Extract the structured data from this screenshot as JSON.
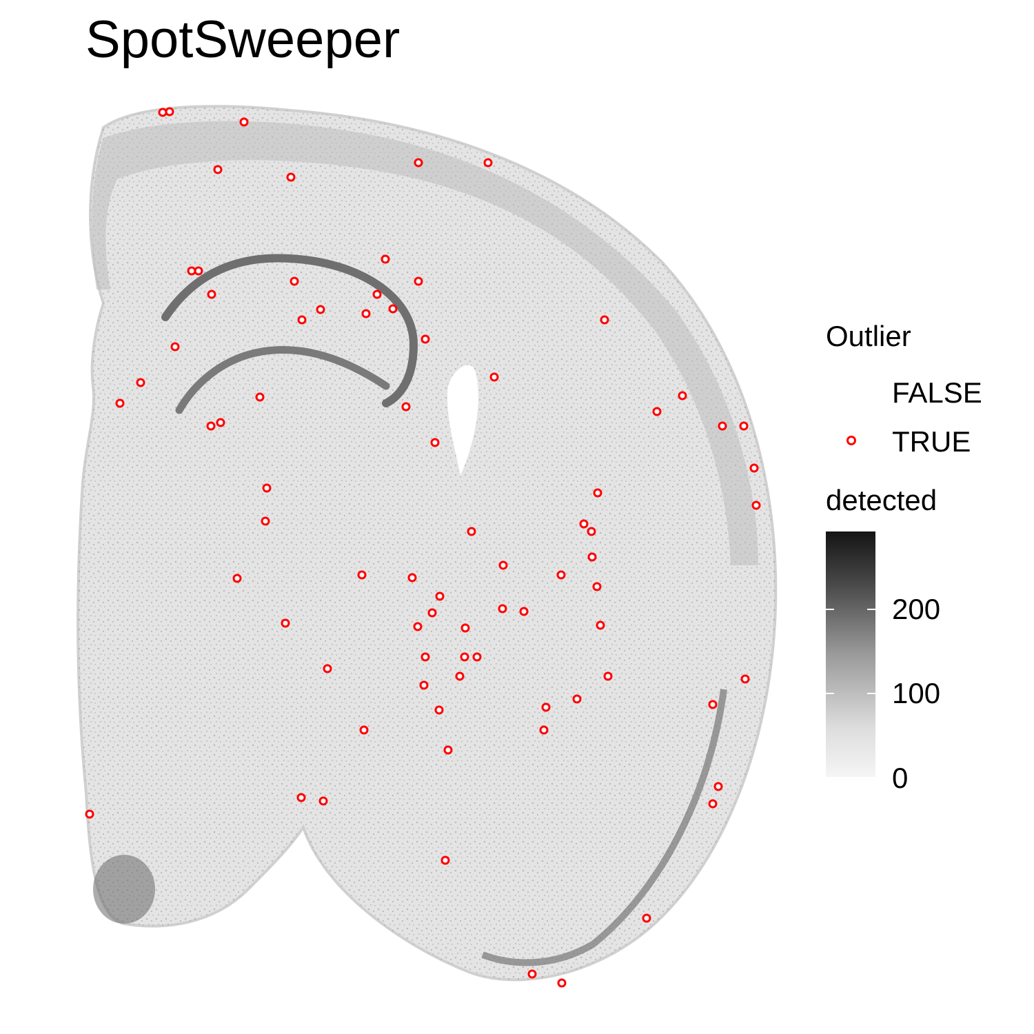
{
  "title": "SpotSweeper",
  "legend": {
    "outlier_title": "Outlier",
    "outlier_false": "FALSE",
    "outlier_true": "TRUE",
    "detected_title": "detected",
    "detected_ticks": [
      "200",
      "100",
      "0"
    ]
  },
  "colors": {
    "outlier": "#ff0000",
    "spot_low": "#f5f5f5",
    "spot_high": "#141414"
  },
  "chart_data": {
    "type": "scatter",
    "title": "SpotSweeper",
    "xlabel": "",
    "ylabel": "",
    "color_scale": {
      "variable": "detected",
      "range": [
        0,
        290
      ],
      "breaks": [
        0,
        100,
        200
      ]
    },
    "shape_legend": {
      "variable": "Outlier",
      "levels": [
        "FALSE",
        "TRUE"
      ]
    },
    "grid": false,
    "legend_position": "right",
    "outlier_points": [
      [
        236,
        163
      ],
      [
        246,
        162
      ],
      [
        354,
        177
      ],
      [
        316,
        246
      ],
      [
        422,
        257
      ],
      [
        607,
        236
      ],
      [
        708,
        236
      ],
      [
        559,
        376
      ],
      [
        278,
        393
      ],
      [
        288,
        393
      ],
      [
        427,
        408
      ],
      [
        607,
        408
      ],
      [
        307,
        427
      ],
      [
        547,
        427
      ],
      [
        465,
        449
      ],
      [
        570,
        448
      ],
      [
        531,
        455
      ],
      [
        438,
        464
      ],
      [
        877,
        464
      ],
      [
        617,
        492
      ],
      [
        254,
        503
      ],
      [
        717,
        547
      ],
      [
        204,
        555
      ],
      [
        990,
        574
      ],
      [
        174,
        585
      ],
      [
        377,
        576
      ],
      [
        589,
        590
      ],
      [
        953,
        597
      ],
      [
        1048,
        618
      ],
      [
        1079,
        618
      ],
      [
        306,
        618
      ],
      [
        320,
        613
      ],
      [
        631,
        642
      ],
      [
        1094,
        679
      ],
      [
        387,
        708
      ],
      [
        867,
        715
      ],
      [
        1097,
        733
      ],
      [
        385,
        756
      ],
      [
        847,
        760
      ],
      [
        858,
        771
      ],
      [
        684,
        771
      ],
      [
        859,
        808
      ],
      [
        730,
        820
      ],
      [
        525,
        834
      ],
      [
        814,
        834
      ],
      [
        344,
        839
      ],
      [
        598,
        838
      ],
      [
        866,
        851
      ],
      [
        638,
        865
      ],
      [
        729,
        883
      ],
      [
        760,
        887
      ],
      [
        627,
        889
      ],
      [
        414,
        904
      ],
      [
        606,
        909
      ],
      [
        675,
        911
      ],
      [
        871,
        907
      ],
      [
        617,
        953
      ],
      [
        674,
        953
      ],
      [
        692,
        953
      ],
      [
        475,
        970
      ],
      [
        667,
        981
      ],
      [
        882,
        981
      ],
      [
        1081,
        985
      ],
      [
        615,
        994
      ],
      [
        837,
        1014
      ],
      [
        792,
        1026
      ],
      [
        1034,
        1022
      ],
      [
        637,
        1030
      ],
      [
        528,
        1059
      ],
      [
        789,
        1059
      ],
      [
        650,
        1088
      ],
      [
        1042,
        1141
      ],
      [
        437,
        1157
      ],
      [
        469,
        1162
      ],
      [
        1034,
        1166
      ],
      [
        130,
        1181
      ],
      [
        646,
        1248
      ],
      [
        938,
        1332
      ],
      [
        772,
        1413
      ],
      [
        815,
        1426
      ]
    ]
  }
}
